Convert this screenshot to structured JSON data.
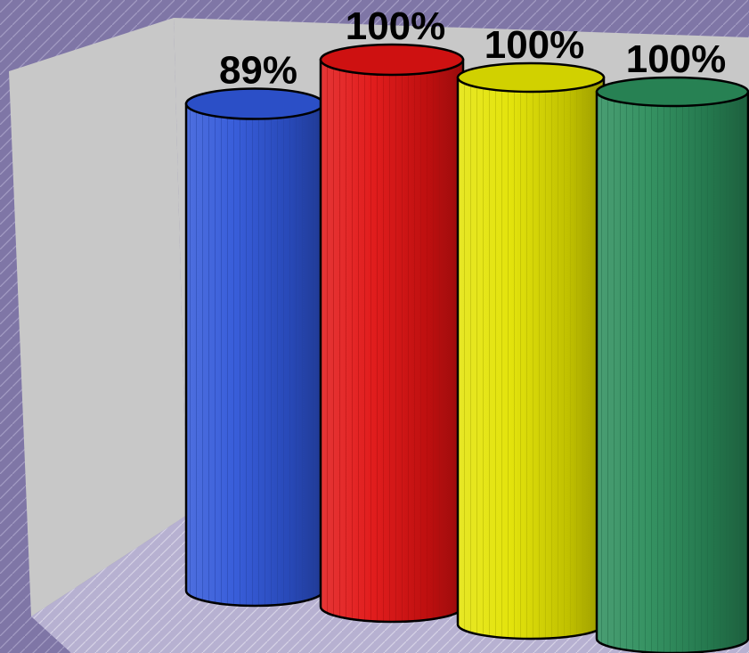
{
  "chart_data": {
    "type": "bar",
    "style": "3d-cylinder",
    "categories": [
      "",
      "",
      "",
      ""
    ],
    "values": [
      89,
      100,
      100,
      100
    ],
    "data_labels": [
      "89%",
      "100%",
      "100%",
      "100%"
    ],
    "colors": [
      "#2f56d8",
      "#e01212",
      "#e3e300",
      "#2a8c5a"
    ],
    "ylim": [
      0,
      100
    ],
    "title": "",
    "xlabel": "",
    "ylabel": "",
    "legend": "none",
    "grid": false,
    "background_color": "#7f76a6",
    "wall_color": "#c8c8c8"
  }
}
